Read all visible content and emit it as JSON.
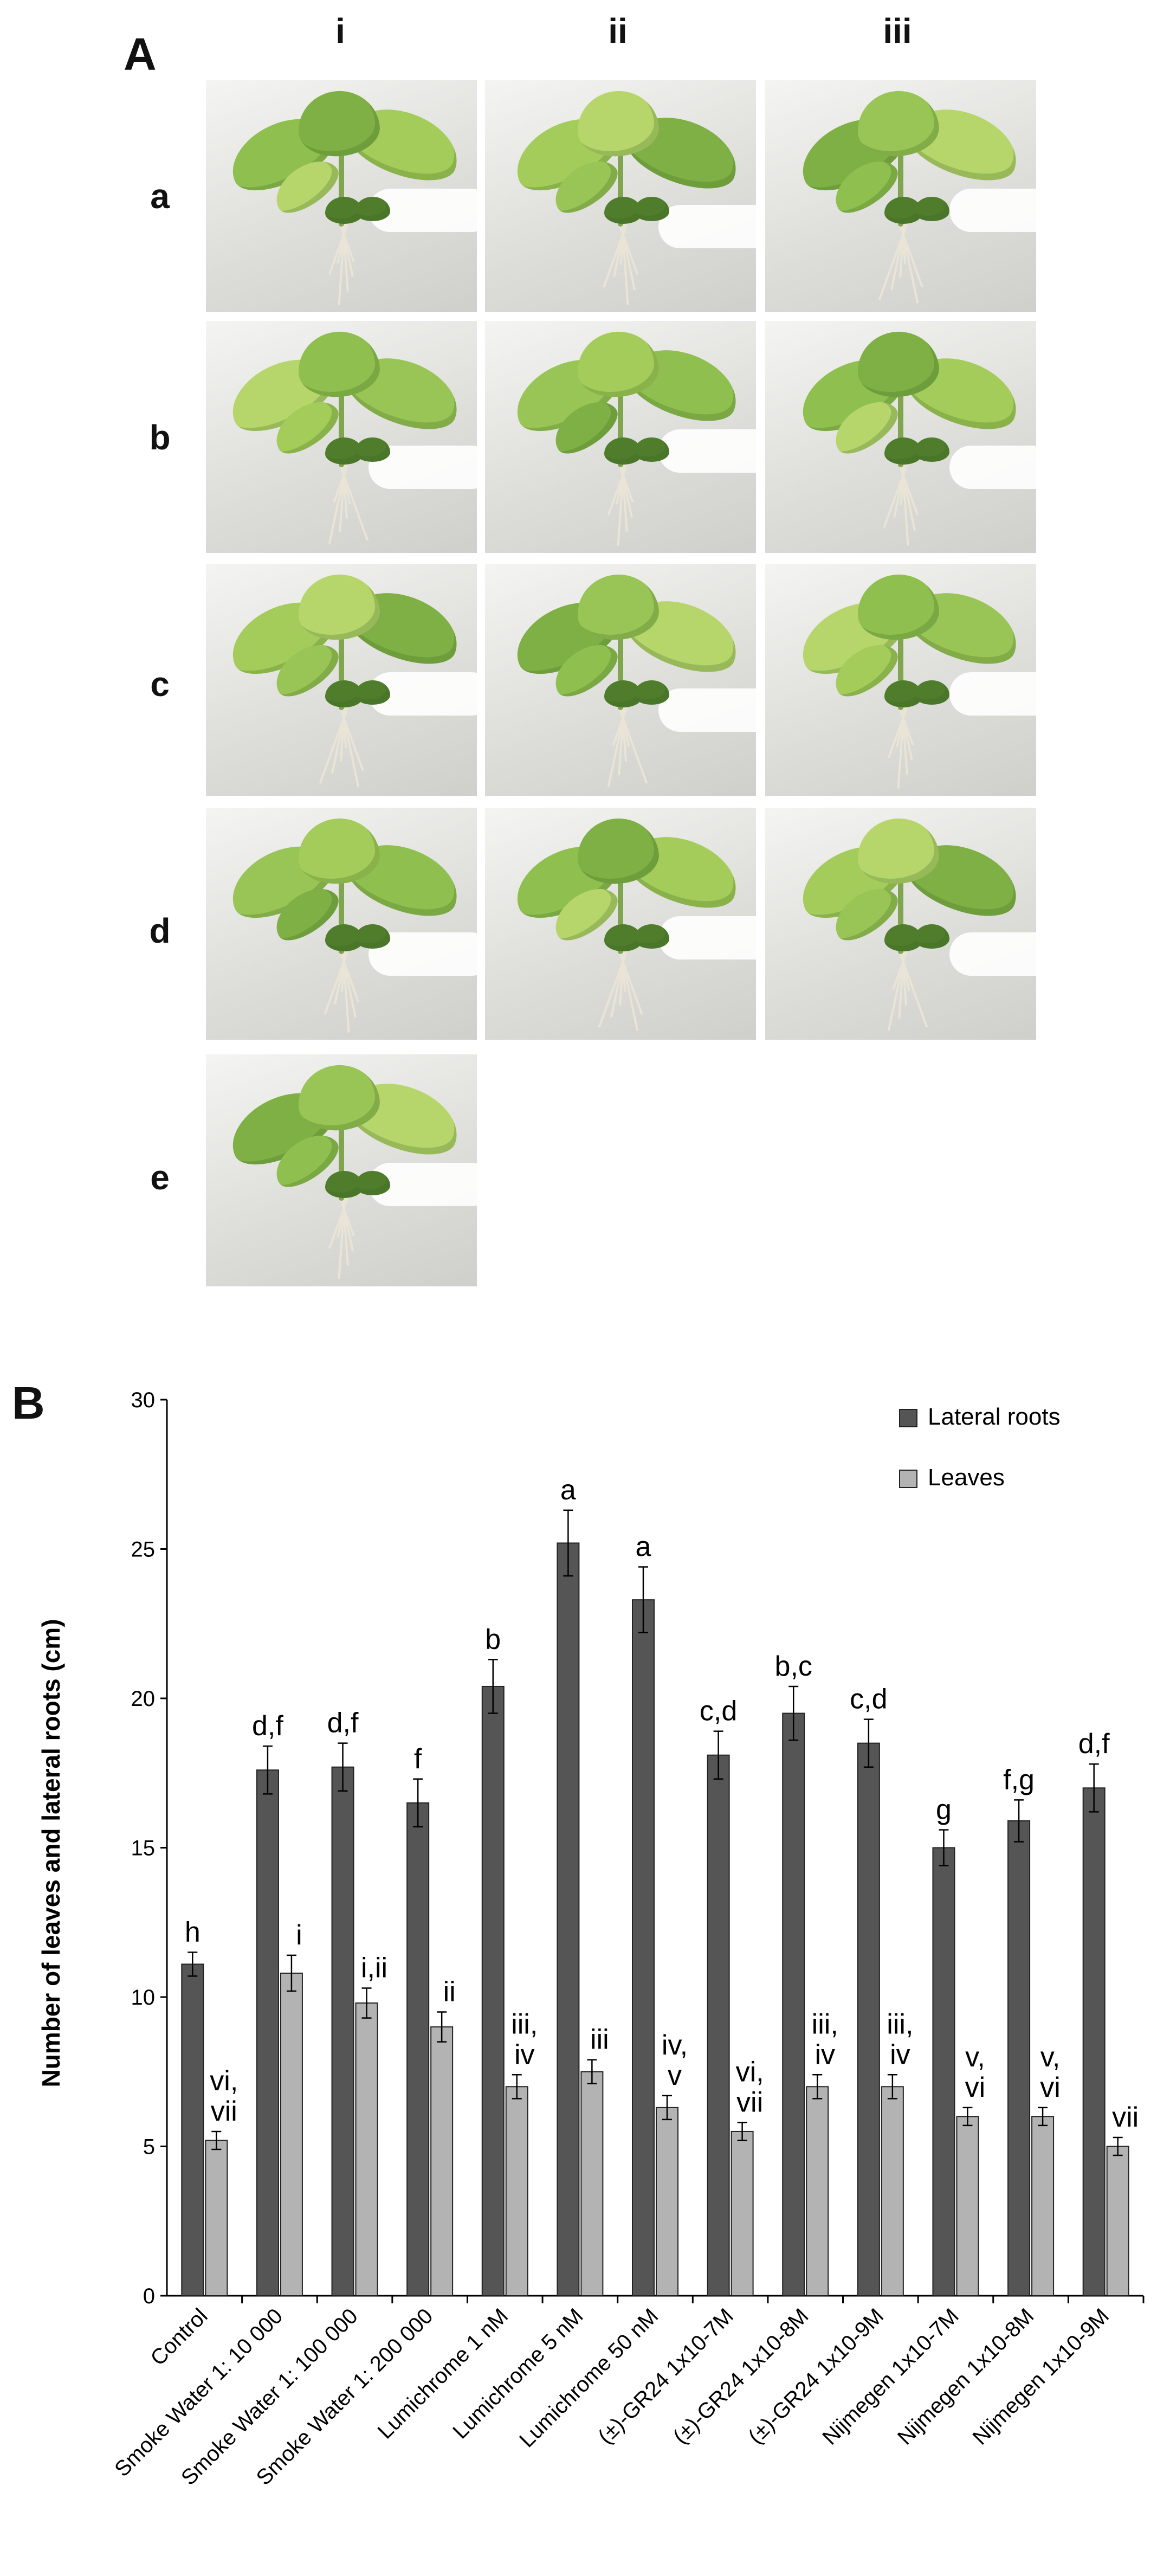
{
  "panel_a": {
    "label": "A",
    "columns": [
      "i",
      "ii",
      "iii"
    ],
    "rows": [
      {
        "label": "a",
        "photo_count": 3
      },
      {
        "label": "b",
        "photo_count": 3
      },
      {
        "label": "c",
        "photo_count": 3
      },
      {
        "label": "d",
        "photo_count": 3
      },
      {
        "label": "e",
        "photo_count": 1
      }
    ]
  },
  "panel_b": {
    "label": "B"
  },
  "chart_data": {
    "type": "bar",
    "ylabel": "Number of leaves and lateral roots (cm)",
    "ylim": [
      0,
      30
    ],
    "yticks": [
      0,
      5,
      10,
      15,
      20,
      25,
      30
    ],
    "legend_position": "top-right",
    "categories": [
      "Control",
      "Smoke Water 1: 10 000",
      "Smoke Water 1: 100 000",
      "Smoke Water 1: 200 000",
      "Lumichrome 1 nM",
      "Lumichrome 5 nM",
      "Lumichrome 50 nM",
      "(±)-GR24 1x10-7M",
      "(±)-GR24 1x10-8M",
      "(±)-GR24 1x10-9M",
      "Nijmegen 1x10-7M",
      "Nijmegen 1x10-8M",
      "Nijmegen 1x10-9M"
    ],
    "series": [
      {
        "name": "Lateral roots",
        "color": "#555555",
        "values": [
          11.1,
          17.6,
          17.7,
          16.5,
          20.4,
          25.2,
          23.3,
          18.1,
          19.5,
          18.5,
          15.0,
          15.9,
          17.0
        ],
        "errors": [
          0.4,
          0.8,
          0.8,
          0.8,
          0.9,
          1.1,
          1.1,
          0.8,
          0.9,
          0.8,
          0.6,
          0.7,
          0.8
        ],
        "labels": [
          "h",
          "d,f",
          "d,f",
          "f",
          "b",
          "a",
          "a",
          "c,d",
          "b,c",
          "c,d",
          "g",
          "f,g",
          "d,f"
        ]
      },
      {
        "name": "Leaves",
        "color": "#b3b3b3",
        "values": [
          5.2,
          10.8,
          9.8,
          9.0,
          7.0,
          7.5,
          6.3,
          5.5,
          7.0,
          7.0,
          6.0,
          6.0,
          5.0
        ],
        "errors": [
          0.3,
          0.6,
          0.5,
          0.5,
          0.4,
          0.4,
          0.4,
          0.3,
          0.4,
          0.4,
          0.3,
          0.3,
          0.3
        ],
        "labels": [
          "vi,\nvii",
          "i",
          "i,ii",
          "ii",
          "iii,\niv",
          "iii",
          "iv,\nv",
          "vi,\nvii",
          "iii,\niv",
          "iii,\niv",
          "v,\nvi",
          "v,\nvi",
          "vii"
        ]
      }
    ]
  }
}
